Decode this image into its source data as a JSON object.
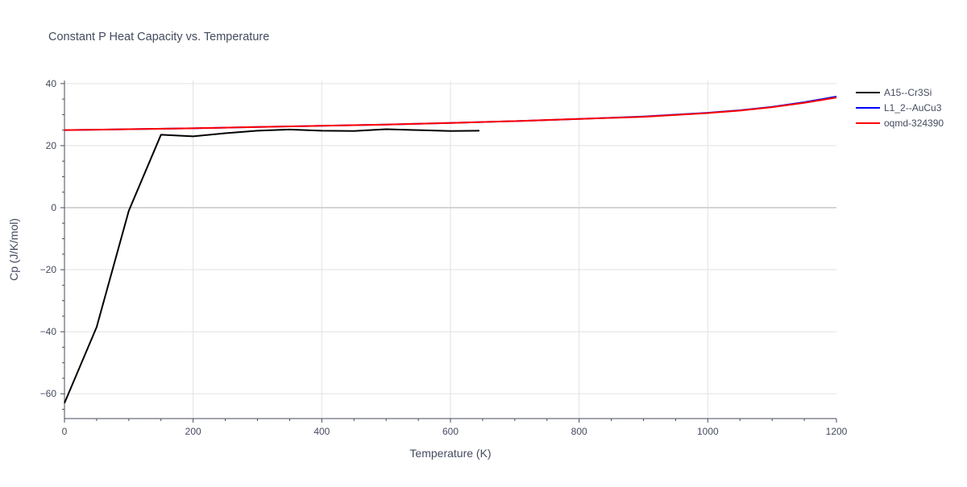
{
  "chart_data": {
    "type": "line",
    "title": "Constant P Heat Capacity vs. Temperature",
    "xlabel": "Temperature (K)",
    "ylabel": "Cp (J/K/mol)",
    "xlim": [
      0,
      1200
    ],
    "ylim": [
      -68,
      41
    ],
    "x_ticks": [
      0,
      200,
      400,
      600,
      800,
      1000,
      1200
    ],
    "y_ticks": [
      -60,
      -40,
      -20,
      0,
      20,
      40
    ],
    "x_tick_labels": [
      "0",
      "200",
      "400",
      "600",
      "800",
      "1000",
      "1200"
    ],
    "y_tick_labels": [
      "−60",
      "−40",
      "−20",
      "0",
      "20",
      "40"
    ],
    "grid": true,
    "legend_position": "top-right",
    "series": [
      {
        "name": "A15--Cr3Si",
        "color": "#000000",
        "x": [
          0,
          50,
          100,
          150,
          200,
          250,
          300,
          350,
          400,
          450,
          500,
          550,
          600,
          645
        ],
        "y": [
          -63,
          -38.5,
          -1,
          23.5,
          23,
          24,
          24.8,
          25.2,
          24.8,
          24.7,
          25.3,
          25,
          24.7,
          24.8
        ]
      },
      {
        "name": "L1_2--AuCu3",
        "color": "#0000ff",
        "x": [
          0,
          100,
          200,
          300,
          400,
          500,
          600,
          700,
          800,
          900,
          1000,
          1050,
          1100,
          1150,
          1200
        ],
        "y": [
          25,
          25.3,
          25.6,
          26,
          26.4,
          26.8,
          27.3,
          27.9,
          28.6,
          29.4,
          30.6,
          31.4,
          32.5,
          34,
          35.8
        ]
      },
      {
        "name": "oqmd-324390",
        "color": "#ff0000",
        "x": [
          0,
          100,
          200,
          300,
          400,
          500,
          600,
          700,
          800,
          900,
          1000,
          1050,
          1100,
          1150,
          1200
        ],
        "y": [
          25,
          25.3,
          25.6,
          26,
          26.4,
          26.8,
          27.3,
          27.9,
          28.6,
          29.3,
          30.5,
          31.3,
          32.4,
          33.8,
          35.5
        ]
      }
    ]
  }
}
